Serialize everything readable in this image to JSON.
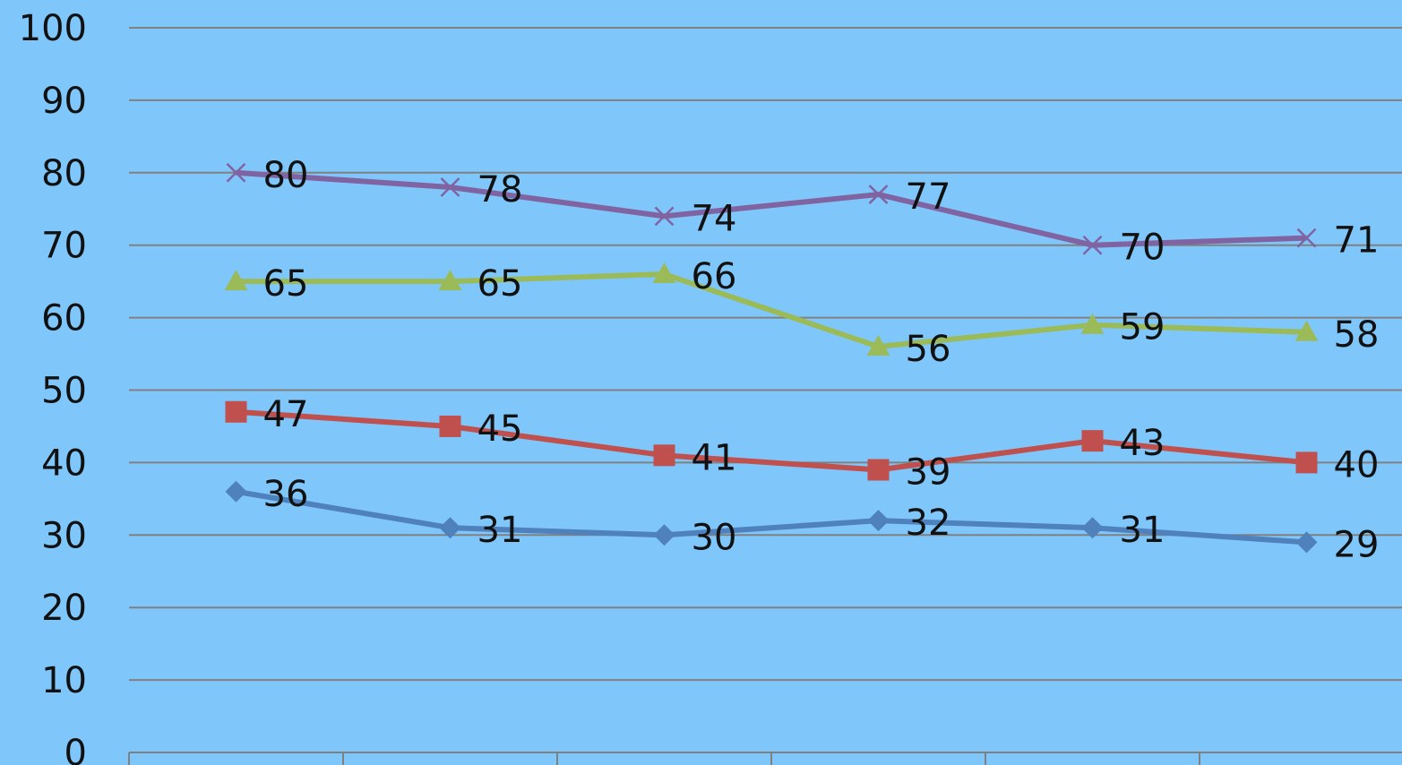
{
  "chart_data": {
    "type": "line",
    "title": "",
    "xlabel": "",
    "ylabel": "",
    "categories": [
      "",
      "",
      "",
      "",
      "",
      ""
    ],
    "ylim": [
      0,
      100
    ],
    "yticks": [
      "0",
      "10",
      "20",
      "30",
      "40",
      "50",
      "60",
      "70",
      "80",
      "90",
      "100"
    ],
    "grid": true,
    "legend": "none",
    "series": [
      {
        "color": "#4f81bd",
        "marker": "diamond",
        "values": [
          36,
          31,
          30,
          32,
          31,
          29
        ]
      },
      {
        "color": "#c0504d",
        "marker": "square",
        "values": [
          47,
          45,
          41,
          39,
          43,
          40
        ]
      },
      {
        "color": "#9bbb59",
        "marker": "triangle",
        "values": [
          65,
          65,
          66,
          56,
          59,
          58
        ]
      },
      {
        "color": "#8064a2",
        "marker": "x",
        "values": [
          80,
          78,
          74,
          77,
          70,
          71
        ]
      }
    ]
  }
}
